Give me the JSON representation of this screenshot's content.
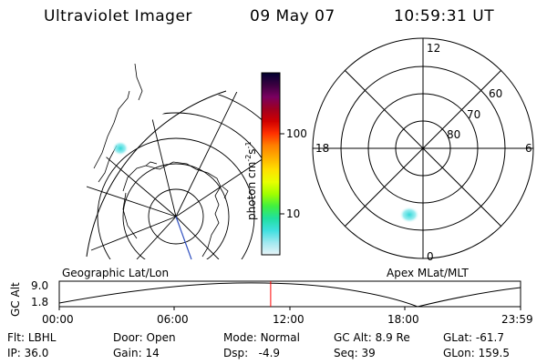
{
  "header": {
    "instrument": "Ultraviolet Imager",
    "date": "09 May 07",
    "time": "10:59:31 UT"
  },
  "colorbar": {
    "unit_main": "photon cm",
    "unit_exp1": "-2",
    "unit_s": "s",
    "unit_exp2": "-1",
    "ticks": [
      "100",
      "10"
    ]
  },
  "geo_panel": {
    "caption": "Geographic Lat/Lon"
  },
  "apex_panel": {
    "caption": "Apex MLat/MLT",
    "mlt_labels": {
      "top": "12",
      "left": "18",
      "right": "6",
      "bottom": "0"
    },
    "lat_labels": [
      "60",
      "70",
      "80"
    ]
  },
  "altitude_plot": {
    "ylabel": "GC Alt",
    "y_ticks": [
      "9.0",
      "1.8"
    ],
    "x_ticks": [
      "00:00",
      "06:00",
      "12:00",
      "18:00",
      "23:59"
    ],
    "current_marker_time": "10:59:31"
  },
  "info": {
    "row1": [
      {
        "label": "Flt:",
        "value": "LBHL"
      },
      {
        "label": "Door:",
        "value": "Open"
      },
      {
        "label": "Mode:",
        "value": "Normal"
      },
      {
        "label": "GC Alt:",
        "value": "8.9 Re"
      },
      {
        "label": "GLat:",
        "value": "-61.7"
      }
    ],
    "row2": [
      {
        "label": "IP:",
        "value": "36.0"
      },
      {
        "label": "Gain:",
        "value": "14"
      },
      {
        "label": "Dsp:",
        "value": "-4.9"
      },
      {
        "label": "Seq:",
        "value": "39"
      },
      {
        "label": "GLon:",
        "value": "159.5"
      }
    ]
  },
  "colors": {
    "colorbar_stops": [
      "#000030",
      "#3a0040",
      "#7a0060",
      "#a00020",
      "#d00000",
      "#ff3000",
      "#ff8000",
      "#ffb000",
      "#ffe000",
      "#e8ff00",
      "#a0ff00",
      "#40f040",
      "#20e0a0",
      "#40e0e0",
      "#a0e8f0",
      "#e8f4f8"
    ],
    "aurora": "#40e0e0",
    "marker": "#ff0000"
  }
}
